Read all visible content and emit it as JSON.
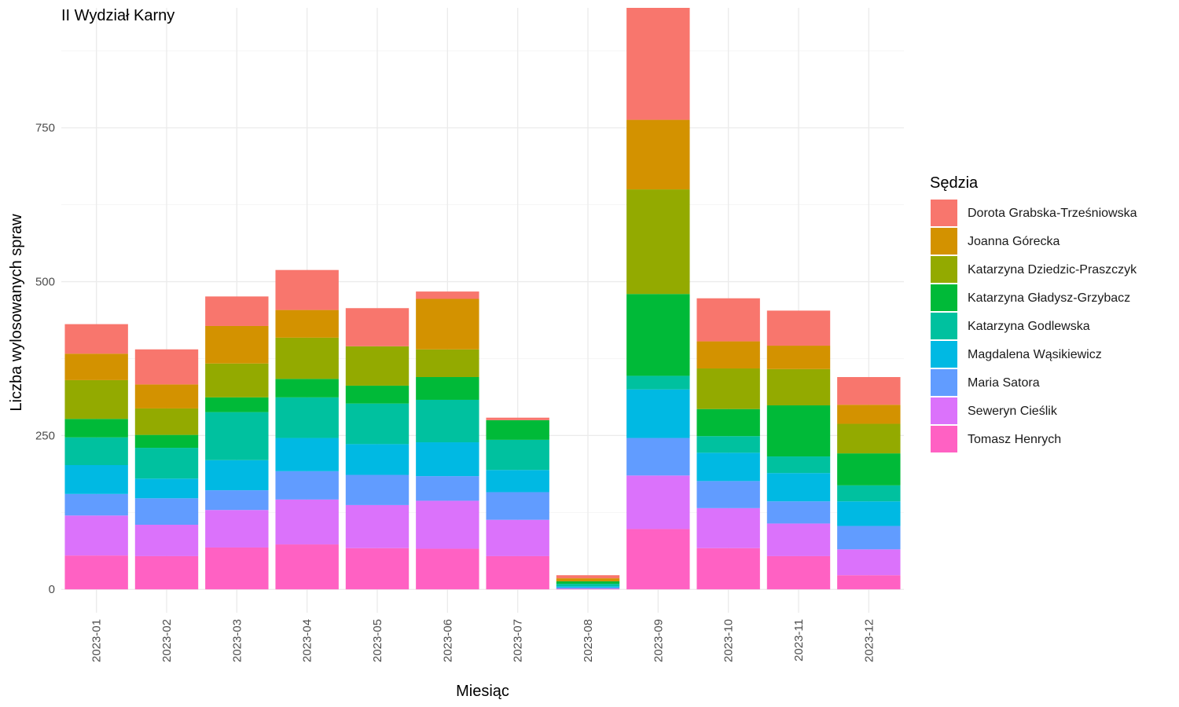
{
  "chart_data": {
    "type": "bar",
    "stacked": true,
    "title": "II Wydział Karny",
    "xlabel": "Miesiąc",
    "ylabel": "Liczba wylosowanych spraw",
    "ylim": [
      -38,
      945
    ],
    "y_ticks": [
      0,
      250,
      500,
      750
    ],
    "grid": true,
    "legend_title": "Sędzia",
    "legend_position": "right",
    "categories": [
      "2023-01",
      "2023-02",
      "2023-03",
      "2023-04",
      "2023-05",
      "2023-06",
      "2023-07",
      "2023-08",
      "2023-09",
      "2023-10",
      "2023-11",
      "2023-12"
    ],
    "series": [
      {
        "name": "Tomasz Henrych",
        "color": "#FF61C3",
        "values": [
          55,
          54,
          68,
          73,
          67,
          66,
          54,
          1,
          98,
          67,
          54,
          23
        ]
      },
      {
        "name": "Seweryn Cieślik",
        "color": "#DB72FB",
        "values": [
          65,
          51,
          61,
          73,
          70,
          78,
          59,
          0,
          87,
          65,
          53,
          42
        ]
      },
      {
        "name": "Maria Satora",
        "color": "#619CFF",
        "values": [
          35,
          43,
          32,
          46,
          49,
          40,
          45,
          2,
          61,
          44,
          36,
          38
        ]
      },
      {
        "name": "Magdalena Wąsikiewicz",
        "color": "#00B9E3",
        "values": [
          47,
          32,
          49,
          54,
          50,
          55,
          36,
          2,
          79,
          46,
          46,
          40
        ]
      },
      {
        "name": "Katarzyna Godlewska",
        "color": "#00C19F",
        "values": [
          45,
          50,
          78,
          66,
          66,
          69,
          49,
          4,
          22,
          27,
          27,
          26
        ]
      },
      {
        "name": "Katarzyna Gładysz-Grzybacz",
        "color": "#00BA38",
        "values": [
          30,
          21,
          24,
          30,
          29,
          37,
          32,
          4,
          133,
          44,
          83,
          52
        ]
      },
      {
        "name": "Katarzyna Dziedzic-Praszczyk",
        "color": "#93AA00",
        "values": [
          63,
          43,
          55,
          67,
          64,
          45,
          0,
          0,
          170,
          66,
          59,
          48
        ]
      },
      {
        "name": "Joanna Górecka",
        "color": "#D39200",
        "values": [
          43,
          39,
          61,
          45,
          0,
          82,
          0,
          5,
          113,
          44,
          38,
          31
        ]
      },
      {
        "name": "Dorota Grabska-Trześniowska",
        "color": "#F8766D",
        "values": [
          48,
          57,
          48,
          65,
          62,
          12,
          4,
          5,
          182,
          70,
          57,
          45
        ]
      }
    ]
  }
}
